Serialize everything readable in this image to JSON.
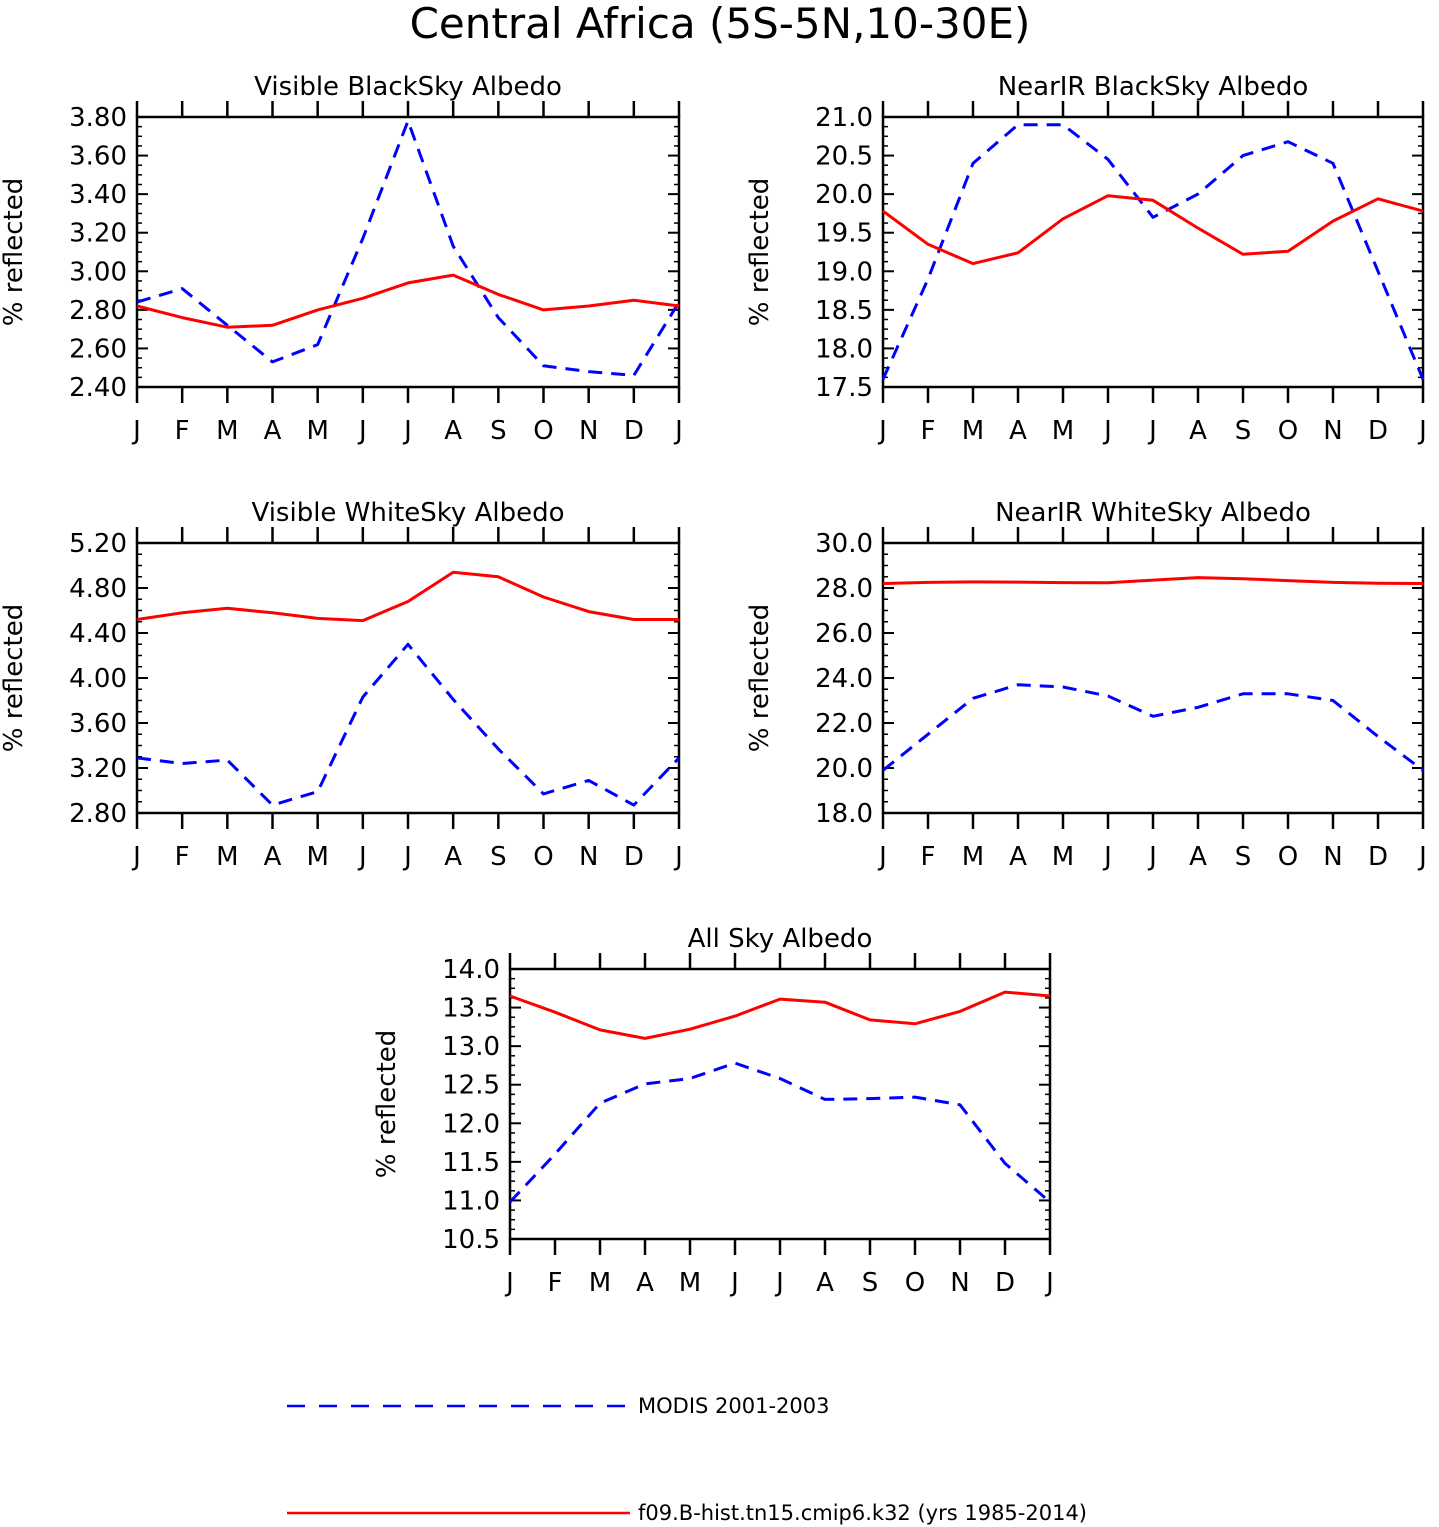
{
  "page_title": "Central Africa (5S-5N,10-30E)",
  "colors": {
    "modis": "#0000ff",
    "model": "#ff0000",
    "axis": "#000000"
  },
  "legend": {
    "modis_label": "MODIS 2001-2003",
    "model_label": "f09.B-hist.tn15.cmip6.k32 (yrs 1985-2014)"
  },
  "chart_data": [
    {
      "type": "line",
      "title": "Visible BlackSky Albedo",
      "xlabel": "",
      "ylabel": "% reflected",
      "categories": [
        "J",
        "F",
        "M",
        "A",
        "M",
        "J",
        "J",
        "A",
        "S",
        "O",
        "N",
        "D",
        "J"
      ],
      "ylim": [
        2.4,
        3.8
      ],
      "yticks": [
        "2.40",
        "2.60",
        "2.80",
        "3.00",
        "3.20",
        "3.40",
        "3.60",
        "3.80"
      ],
      "series": [
        {
          "name": "MODIS 2001-2003",
          "values": [
            2.84,
            2.91,
            2.72,
            2.53,
            2.62,
            3.17,
            3.78,
            3.13,
            2.76,
            2.51,
            2.48,
            2.46,
            2.84
          ]
        },
        {
          "name": "f09.B-hist.tn15.cmip6.k32 (yrs 1985-2014)",
          "values": [
            2.82,
            2.76,
            2.71,
            2.72,
            2.8,
            2.86,
            2.94,
            2.98,
            2.88,
            2.8,
            2.82,
            2.85,
            2.82
          ]
        }
      ]
    },
    {
      "type": "line",
      "title": "NearIR BlackSky Albedo",
      "xlabel": "",
      "ylabel": "% reflected",
      "categories": [
        "J",
        "F",
        "M",
        "A",
        "M",
        "J",
        "J",
        "A",
        "S",
        "O",
        "N",
        "D",
        "J"
      ],
      "ylim": [
        17.5,
        21.0
      ],
      "yticks": [
        "17.5",
        "18.0",
        "18.5",
        "19.0",
        "19.5",
        "20.0",
        "20.5",
        "21.0"
      ],
      "series": [
        {
          "name": "MODIS 2001-2003",
          "values": [
            17.6,
            18.9,
            20.4,
            20.9,
            20.9,
            20.45,
            19.7,
            20.0,
            20.5,
            20.68,
            20.4,
            19.0,
            17.6
          ]
        },
        {
          "name": "f09.B-hist.tn15.cmip6.k32 (yrs 1985-2014)",
          "values": [
            19.78,
            19.35,
            19.1,
            19.24,
            19.68,
            19.98,
            19.92,
            19.56,
            19.22,
            19.26,
            19.65,
            19.94,
            19.78
          ]
        }
      ]
    },
    {
      "type": "line",
      "title": "Visible WhiteSky Albedo",
      "xlabel": "",
      "ylabel": "% reflected",
      "categories": [
        "J",
        "F",
        "M",
        "A",
        "M",
        "J",
        "J",
        "A",
        "S",
        "O",
        "N",
        "D",
        "J"
      ],
      "ylim": [
        2.8,
        5.2
      ],
      "yticks": [
        "2.80",
        "3.20",
        "3.60",
        "4.00",
        "4.40",
        "4.80",
        "5.20"
      ],
      "series": [
        {
          "name": "MODIS 2001-2003",
          "values": [
            3.29,
            3.24,
            3.27,
            2.87,
            2.99,
            3.83,
            4.3,
            3.81,
            3.37,
            2.97,
            3.09,
            2.87,
            3.29
          ]
        },
        {
          "name": "f09.B-hist.tn15.cmip6.k32 (yrs 1985-2014)",
          "values": [
            4.52,
            4.58,
            4.62,
            4.58,
            4.53,
            4.51,
            4.68,
            4.94,
            4.9,
            4.72,
            4.59,
            4.52,
            4.52
          ]
        }
      ]
    },
    {
      "type": "line",
      "title": "NearIR WhiteSky Albedo",
      "xlabel": "",
      "ylabel": "% reflected",
      "categories": [
        "J",
        "F",
        "M",
        "A",
        "M",
        "J",
        "J",
        "A",
        "S",
        "O",
        "N",
        "D",
        "J"
      ],
      "ylim": [
        18.0,
        30.0
      ],
      "yticks": [
        "18.0",
        "20.0",
        "22.0",
        "24.0",
        "26.0",
        "28.0",
        "30.0"
      ],
      "series": [
        {
          "name": "MODIS 2001-2003",
          "values": [
            19.9,
            21.5,
            23.1,
            23.7,
            23.6,
            23.2,
            22.3,
            22.7,
            23.3,
            23.3,
            23.0,
            21.4,
            19.9
          ]
        },
        {
          "name": "f09.B-hist.tn15.cmip6.k32 (yrs 1985-2014)",
          "values": [
            28.2,
            28.25,
            28.27,
            28.26,
            28.24,
            28.23,
            28.35,
            28.46,
            28.41,
            28.33,
            28.25,
            28.21,
            28.2
          ]
        }
      ]
    },
    {
      "type": "line",
      "title": "All Sky Albedo",
      "xlabel": "",
      "ylabel": "% reflected",
      "categories": [
        "J",
        "F",
        "M",
        "A",
        "M",
        "J",
        "J",
        "A",
        "S",
        "O",
        "N",
        "D",
        "J"
      ],
      "ylim": [
        10.5,
        14.0
      ],
      "yticks": [
        "10.5",
        "11.0",
        "11.5",
        "12.0",
        "12.5",
        "13.0",
        "13.5",
        "14.0"
      ],
      "series": [
        {
          "name": "MODIS 2001-2003",
          "values": [
            10.98,
            11.6,
            12.26,
            12.51,
            12.58,
            12.78,
            12.58,
            12.31,
            12.32,
            12.34,
            12.24,
            11.48,
            10.98
          ]
        },
        {
          "name": "f09.B-hist.tn15.cmip6.k32 (yrs 1985-2014)",
          "values": [
            13.65,
            13.44,
            13.21,
            13.1,
            13.22,
            13.39,
            13.61,
            13.57,
            13.34,
            13.29,
            13.45,
            13.7,
            13.65
          ]
        }
      ]
    }
  ]
}
